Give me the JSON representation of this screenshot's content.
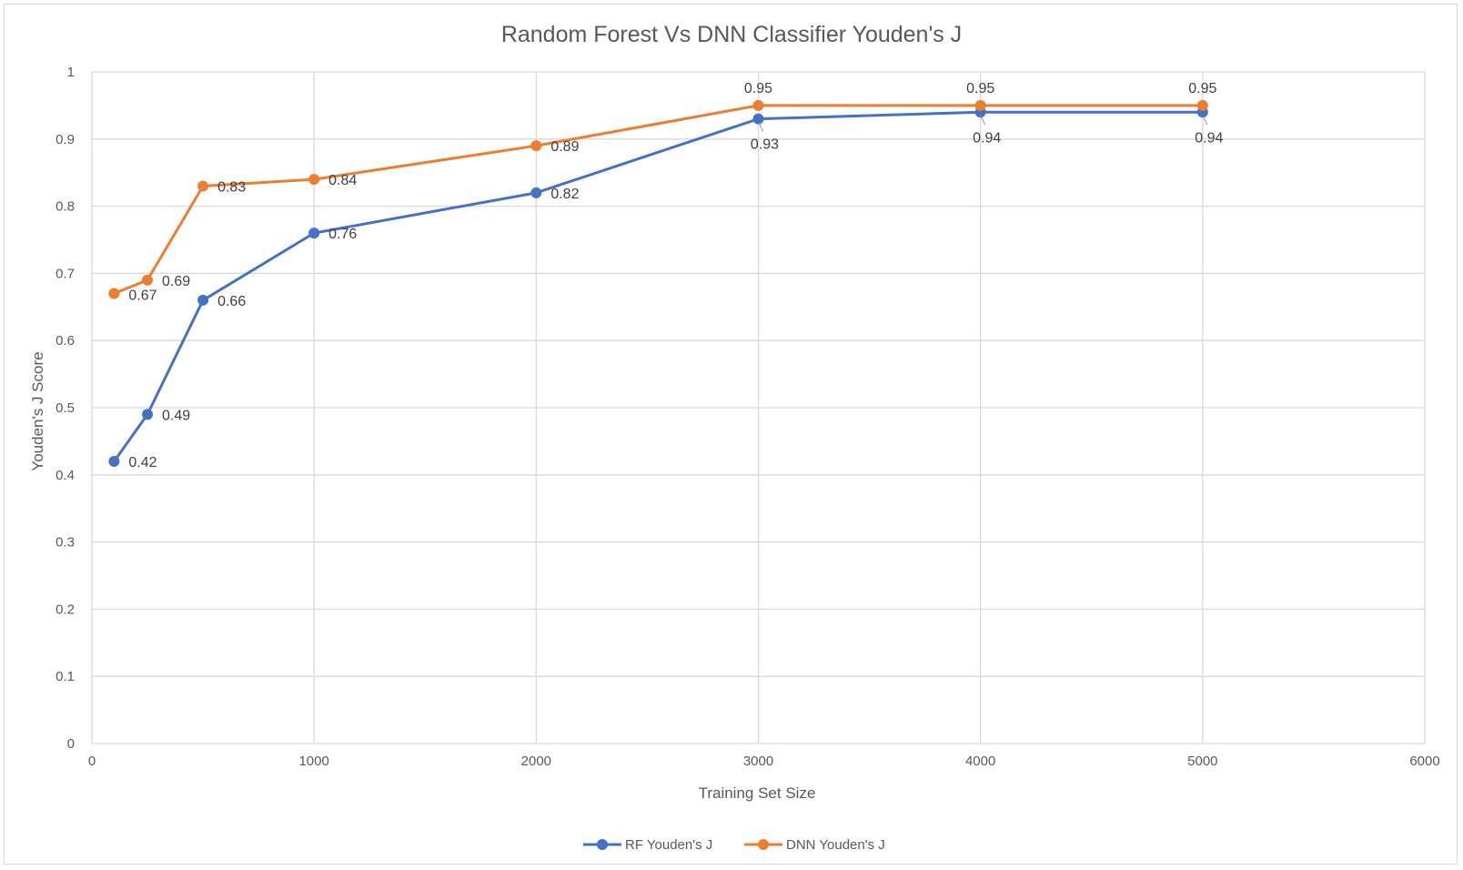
{
  "chart_data": {
    "type": "line",
    "title": "Random Forest Vs DNN Classifier Youden's J",
    "xlabel": "Training Set Size",
    "ylabel": "Youden's J Score",
    "xlim": [
      0,
      6000
    ],
    "ylim": [
      0,
      1
    ],
    "x_ticks": [
      "0",
      "1000",
      "2000",
      "3000",
      "4000",
      "5000",
      "6000"
    ],
    "y_ticks": [
      "0",
      "0.1",
      "0.2",
      "0.3",
      "0.4",
      "0.5",
      "0.6",
      "0.7",
      "0.8",
      "0.9",
      "1"
    ],
    "grid": true,
    "legend_position": "bottom",
    "series": [
      {
        "name": "RF Youden's J",
        "color": "#4472c4",
        "x": [
          100,
          250,
          500,
          1000,
          2000,
          3000,
          4000,
          5000
        ],
        "values": [
          0.42,
          0.49,
          0.66,
          0.76,
          0.82,
          0.93,
          0.94,
          0.94
        ],
        "labels": [
          "0.42",
          "0.49",
          "0.66",
          "0.76",
          "0.82",
          "0.93",
          "0.94",
          "0.94"
        ]
      },
      {
        "name": "DNN Youden's J",
        "color": "#ed7d31",
        "x": [
          100,
          250,
          500,
          1000,
          2000,
          3000,
          4000,
          5000
        ],
        "values": [
          0.67,
          0.69,
          0.83,
          0.84,
          0.89,
          0.95,
          0.95,
          0.95
        ],
        "labels": [
          "0.67",
          "0.69",
          "0.83",
          "0.84",
          "0.89",
          "0.95",
          "0.95",
          "0.95"
        ]
      }
    ]
  }
}
